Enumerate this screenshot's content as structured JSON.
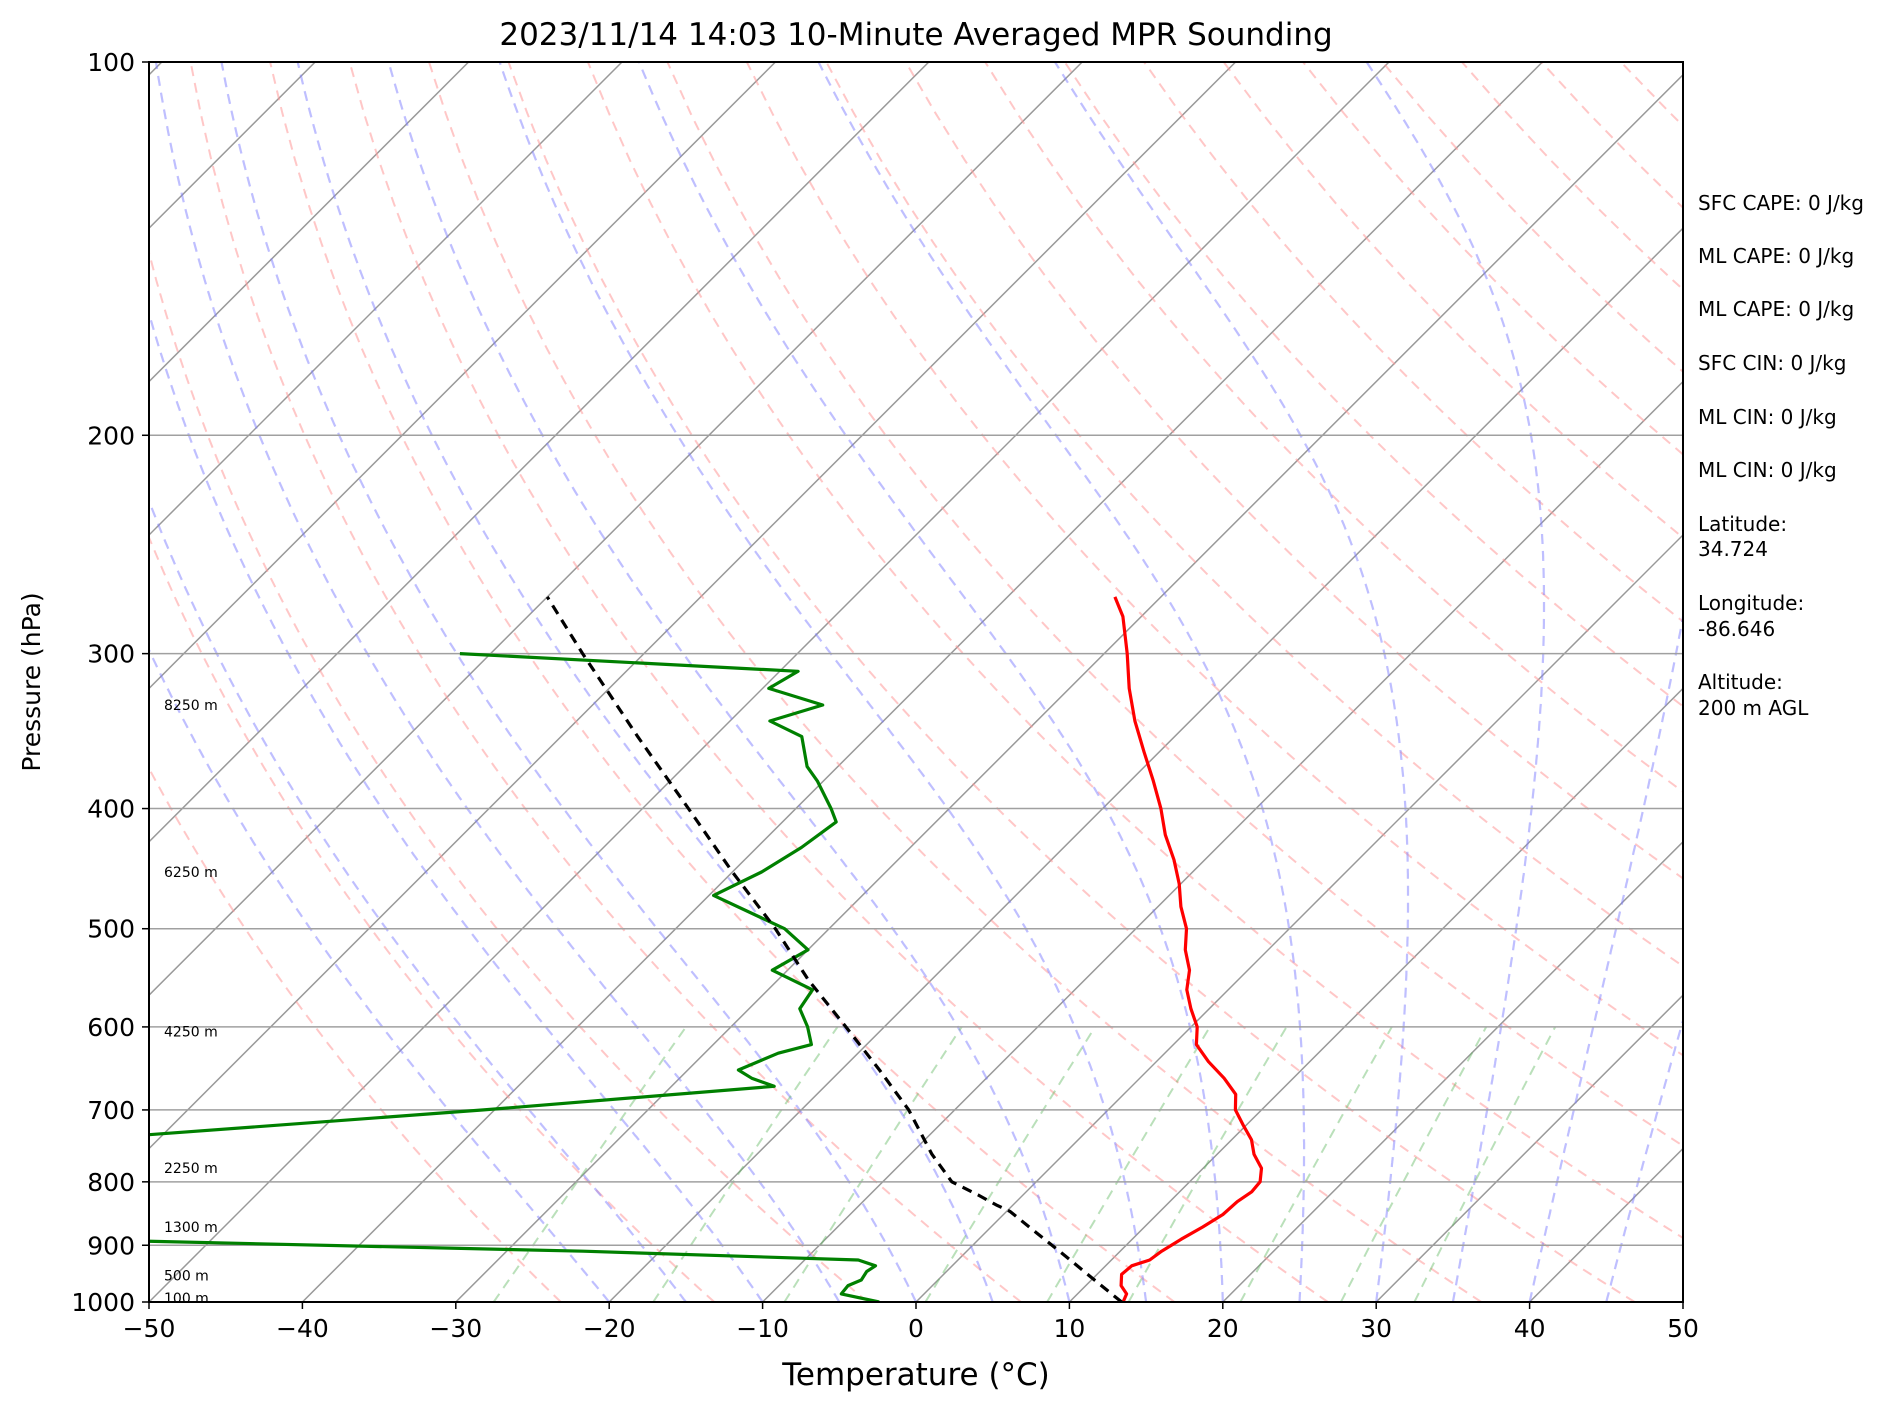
{
  "chart_data": {
    "type": "line",
    "title": "2023/11/14 14:03 10-Minute Averaged MPR Sounding",
    "xlabel": "Temperature (°C)",
    "ylabel": "Pressure (hPa)",
    "xlim": [
      -50,
      50
    ],
    "ylim": [
      1000,
      100
    ],
    "y_scale": "log",
    "skew": true,
    "grid": true,
    "x_ticks": [
      "−50",
      "−40",
      "−30",
      "−20",
      "−10",
      "0",
      "10",
      "20",
      "30",
      "40",
      "50"
    ],
    "y_ticks": [
      "100",
      "200",
      "300",
      "400",
      "500",
      "600",
      "700",
      "800",
      "900",
      "1000"
    ],
    "series": [
      {
        "color": "#ff0000",
        "p": [
          1000,
          985,
          970,
          950,
          935,
          925,
          910,
          890,
          870,
          850,
          830,
          815,
          800,
          780,
          760,
          740,
          720,
          700,
          680,
          660,
          640,
          620,
          600,
          580,
          560,
          540,
          520,
          500,
          480,
          460,
          440,
          420,
          400,
          380,
          360,
          340,
          320,
          300,
          280,
          270
        ],
        "t": [
          13.5,
          13.2,
          12.3,
          11.6,
          11.7,
          12.5,
          12.7,
          13.2,
          13.8,
          14.3,
          14.4,
          14.7,
          14.6,
          13.8,
          12.4,
          11.3,
          9.8,
          8.3,
          7.3,
          5.5,
          3.4,
          1.5,
          0.4,
          -1.2,
          -2.7,
          -3.8,
          -5.4,
          -6.7,
          -8.5,
          -10.1,
          -12.0,
          -14.2,
          -16.2,
          -18.5,
          -21.0,
          -23.6,
          -26.1,
          -28.5,
          -31.2,
          -33.0
        ]
      },
      {
        "color": "#008000",
        "p": [
          1000,
          985,
          970,
          960,
          945,
          935,
          925,
          910,
          890,
          850,
          820,
          800,
          790,
          780,
          750,
          700,
          670,
          660,
          650,
          630,
          620,
          600,
          580,
          560,
          540,
          520,
          500,
          470,
          450,
          430,
          410,
          400,
          380,
          370,
          350,
          340,
          330,
          320,
          310,
          300
        ],
        "t": [
          -2.4,
          -5.4,
          -5.5,
          -5.0,
          -5.2,
          -5.0,
          -6.5,
          -25.0,
          -60.0,
          -86.0,
          -88.5,
          -88.0,
          -89.7,
          -88.0,
          -71.0,
          -40.7,
          -23.3,
          -25.3,
          -26.7,
          -25.2,
          -23.6,
          -25.0,
          -26.7,
          -27.1,
          -31.0,
          -30.0,
          -32.9,
          -39.7,
          -38.1,
          -37.1,
          -36.5,
          -37.7,
          -40.4,
          -42.0,
          -44.3,
          -47.4,
          -45.0,
          -49.6,
          -48.8,
          -72.0
        ]
      },
      {
        "color": "#000000",
        "dashed": true,
        "p": [
          1000,
          960,
          920,
          880,
          845,
          835,
          820,
          800,
          760,
          700,
          650,
          600,
          550,
          500,
          450,
          400,
          350,
          300,
          270
        ],
        "t": [
          13.4,
          10.2,
          6.9,
          3.4,
          0.2,
          -1.1,
          -2.9,
          -5.5,
          -8.6,
          -13.0,
          -17.5,
          -22.5,
          -28.0,
          -33.5,
          -40.0,
          -47.0,
          -55.0,
          -64.0,
          -70.0
        ]
      }
    ],
    "altitude_labels": [
      "100 m",
      "500 m",
      "1300 m",
      "2250 m",
      "4250 m",
      "6250 m",
      "8250 m"
    ],
    "altitude_label_pressures": [
      993,
      952,
      870,
      780,
      605,
      450,
      330
    ]
  },
  "info": {
    "sfc_cape": "SFC CAPE: 0 J/kg",
    "ml_cape_1": "ML CAPE: 0 J/kg",
    "ml_cape_2": "ML CAPE: 0 J/kg",
    "sfc_cin": "SFC CIN: 0 J/kg",
    "ml_cin_1": "ML CIN: 0 J/kg",
    "ml_cin_2": "ML CIN: 0 J/kg",
    "lat_label": "Latitude:",
    "lat_value": "34.724",
    "lon_label": "Longitude:",
    "lon_value": "-86.646",
    "alt_label": "Altitude:",
    "alt_value": "200 m AGL"
  }
}
